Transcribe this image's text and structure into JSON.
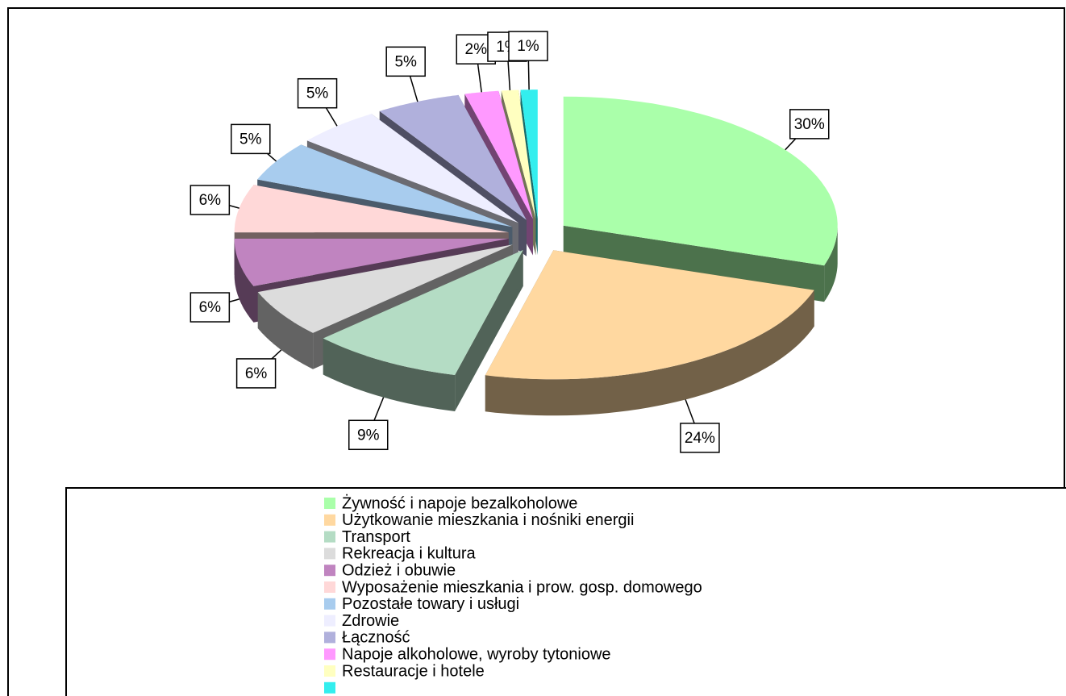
{
  "chart_data": {
    "type": "pie3d",
    "categories": [
      "Żywność i napoje bezalkoholowe",
      "Użytkowanie mieszkania i nośniki energii",
      "Transport",
      "Rekreacja i kultura",
      "Odzież i obuwie",
      "Wyposażenie mieszkania i prow. gosp. domowego",
      "Pozostałe towary i usługi",
      "Zdrowie",
      "Łączność",
      "Napoje alkoholowe, wyroby tytoniowe",
      "Restauracje i hotele",
      null
    ],
    "values": [
      30,
      24,
      9,
      6,
      6,
      6,
      5,
      5,
      5,
      2,
      1,
      1
    ],
    "value_labels": [
      "30%",
      "24%",
      "9%",
      "6%",
      "6%",
      "6%",
      "5%",
      "5%",
      "5%",
      "2%",
      "1%",
      "1%"
    ],
    "colors": [
      "#aaffaa",
      "#ffd8a0",
      "#b4dcc4",
      "#dcdcdc",
      "#c084c0",
      "#ffd8d8",
      "#a8ccee",
      "#eeeeff",
      "#b0b0dc",
      "#ff99ff",
      "#ffffc0",
      "#33eeee"
    ],
    "legend": "bottom"
  }
}
